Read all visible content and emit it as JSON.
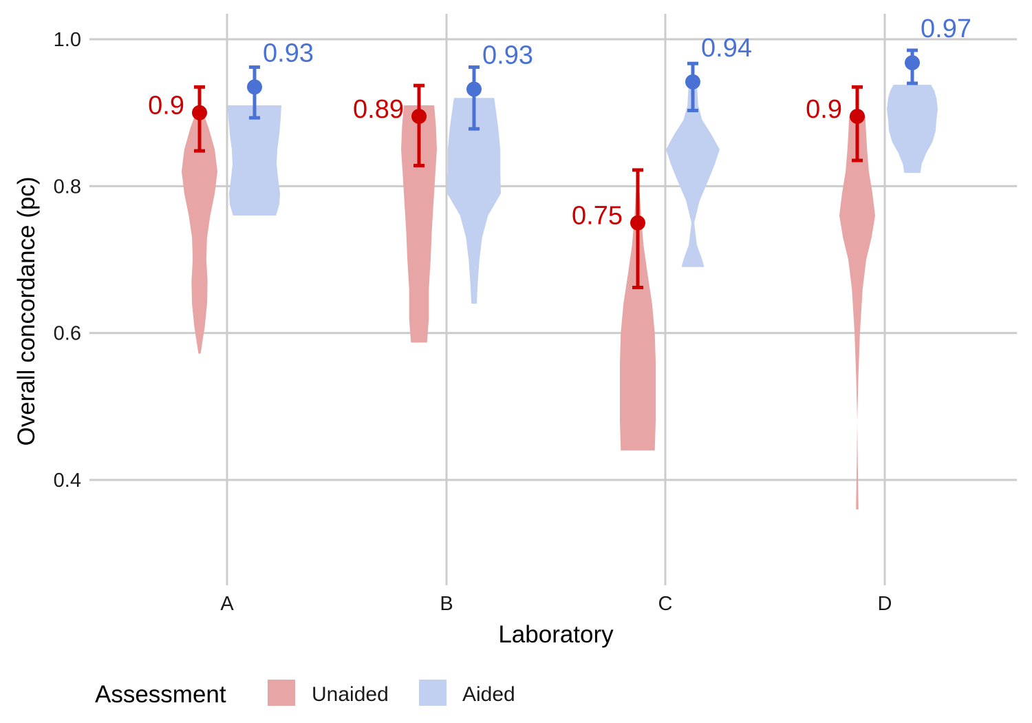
{
  "chart_data": {
    "type": "violin",
    "xlabel": "Laboratory",
    "ylabel": "Overall concordance (pc)",
    "ylim": [
      0.25,
      1.03
    ],
    "yticks": [
      0.4,
      0.6,
      0.8,
      1.0
    ],
    "ytick_labels": [
      "0.4",
      "0.6",
      "0.8",
      "1.0"
    ],
    "categories": [
      "A",
      "B",
      "C",
      "D"
    ],
    "grid": true,
    "legend": {
      "title": "Assessment",
      "position": "bottom-left",
      "entries": [
        "Unaided",
        "Aided"
      ]
    },
    "colors": {
      "Unaided": "#cc0000",
      "Aided": "#4a72d4",
      "Unaided_fill": "#e8a5a5",
      "Aided_fill": "#c1cff0"
    },
    "series": [
      {
        "name": "Unaided",
        "points": [
          {
            "category": "A",
            "mean": 0.9,
            "ci": [
              0.848,
              0.935
            ],
            "label": "0.9",
            "violin": {
              "min": 0.572,
              "max": 0.9,
              "profile": [
                [
                  0.572,
                  0.06
                ],
                [
                  0.61,
                  0.3
                ],
                [
                  0.64,
                  0.42
                ],
                [
                  0.67,
                  0.45
                ],
                [
                  0.7,
                  0.38
                ],
                [
                  0.73,
                  0.42
                ],
                [
                  0.76,
                  0.6
                ],
                [
                  0.79,
                  0.85
                ],
                [
                  0.82,
                  1.0
                ],
                [
                  0.85,
                  0.85
                ],
                [
                  0.88,
                  0.5
                ],
                [
                  0.9,
                  0.2
                ]
              ]
            }
          },
          {
            "category": "B",
            "mean": 0.895,
            "ci": [
              0.828,
              0.937
            ],
            "label": "0.89",
            "violin": {
              "min": 0.587,
              "max": 0.91,
              "profile": [
                [
                  0.587,
                  0.45
                ],
                [
                  0.62,
                  0.55
                ],
                [
                  0.66,
                  0.55
                ],
                [
                  0.7,
                  0.65
                ],
                [
                  0.74,
                  0.72
                ],
                [
                  0.78,
                  0.82
                ],
                [
                  0.82,
                  0.92
                ],
                [
                  0.85,
                  1.0
                ],
                [
                  0.88,
                  0.95
                ],
                [
                  0.91,
                  0.85
                ]
              ]
            }
          },
          {
            "category": "C",
            "mean": 0.75,
            "ci": [
              0.662,
              0.822
            ],
            "label": "0.75",
            "violin": {
              "min": 0.44,
              "max": 0.822,
              "profile": [
                [
                  0.44,
                  0.95
                ],
                [
                  0.48,
                  1.0
                ],
                [
                  0.52,
                  1.0
                ],
                [
                  0.56,
                  1.0
                ],
                [
                  0.6,
                  0.95
                ],
                [
                  0.64,
                  0.8
                ],
                [
                  0.68,
                  0.55
                ],
                [
                  0.72,
                  0.32
                ],
                [
                  0.76,
                  0.18
                ],
                [
                  0.8,
                  0.08
                ],
                [
                  0.822,
                  0.02
                ]
              ]
            }
          },
          {
            "category": "D",
            "mean": 0.895,
            "ci": [
              0.835,
              0.935
            ],
            "label": "0.9",
            "violin": {
              "min": 0.36,
              "max": 0.895,
              "profile": [
                [
                  0.36,
                  0.07
                ],
                [
                  0.42,
                  0.03
                ],
                [
                  0.48,
                  0.0
                ],
                [
                  0.54,
                  0.06
                ],
                [
                  0.6,
                  0.15
                ],
                [
                  0.66,
                  0.3
                ],
                [
                  0.7,
                  0.5
                ],
                [
                  0.73,
                  0.8
                ],
                [
                  0.76,
                  1.0
                ],
                [
                  0.79,
                  0.85
                ],
                [
                  0.82,
                  0.65
                ],
                [
                  0.85,
                  0.55
                ],
                [
                  0.87,
                  0.5
                ],
                [
                  0.895,
                  0.45
                ]
              ]
            }
          }
        ]
      },
      {
        "name": "Aided",
        "points": [
          {
            "category": "A",
            "mean": 0.935,
            "ci": [
              0.893,
              0.962
            ],
            "label": "0.93",
            "violin": {
              "min": 0.76,
              "max": 0.91,
              "profile": [
                [
                  0.76,
                  0.8
                ],
                [
                  0.775,
                  0.92
                ],
                [
                  0.79,
                  0.95
                ],
                [
                  0.81,
                  0.88
                ],
                [
                  0.83,
                  0.82
                ],
                [
                  0.85,
                  0.85
                ],
                [
                  0.87,
                  0.92
                ],
                [
                  0.89,
                  0.97
                ],
                [
                  0.91,
                  1.0
                ]
              ]
            }
          },
          {
            "category": "B",
            "mean": 0.932,
            "ci": [
              0.878,
              0.962
            ],
            "label": "0.93",
            "violin": {
              "min": 0.64,
              "max": 0.92,
              "profile": [
                [
                  0.64,
                  0.1
                ],
                [
                  0.67,
                  0.14
                ],
                [
                  0.7,
                  0.2
                ],
                [
                  0.73,
                  0.3
                ],
                [
                  0.76,
                  0.52
                ],
                [
                  0.79,
                  1.0
                ],
                [
                  0.82,
                  0.98
                ],
                [
                  0.85,
                  0.98
                ],
                [
                  0.88,
                  0.9
                ],
                [
                  0.92,
                  0.75
                ]
              ]
            }
          },
          {
            "category": "C",
            "mean": 0.942,
            "ci": [
              0.903,
              0.967
            ],
            "label": "0.94",
            "violin": {
              "min": 0.69,
              "max": 0.945,
              "profile": [
                [
                  0.69,
                  0.42
                ],
                [
                  0.7,
                  0.35
                ],
                [
                  0.72,
                  0.15
                ],
                [
                  0.75,
                  0.05
                ],
                [
                  0.78,
                  0.25
                ],
                [
                  0.81,
                  0.6
                ],
                [
                  0.83,
                  0.82
                ],
                [
                  0.85,
                  1.0
                ],
                [
                  0.87,
                  0.7
                ],
                [
                  0.89,
                  0.35
                ],
                [
                  0.91,
                  0.2
                ],
                [
                  0.93,
                  0.17
                ],
                [
                  0.945,
                  0.12
                ]
              ]
            }
          },
          {
            "category": "D",
            "mean": 0.968,
            "ci": [
              0.94,
              0.985
            ],
            "label": "0.97",
            "violin": {
              "min": 0.818,
              "max": 0.938,
              "profile": [
                [
                  0.818,
                  0.3
                ],
                [
                  0.83,
                  0.35
                ],
                [
                  0.845,
                  0.52
                ],
                [
                  0.86,
                  0.75
                ],
                [
                  0.875,
                  0.87
                ],
                [
                  0.89,
                  0.9
                ],
                [
                  0.905,
                  0.95
                ],
                [
                  0.92,
                  0.9
                ],
                [
                  0.93,
                  0.82
                ],
                [
                  0.938,
                  0.7
                ]
              ]
            }
          }
        ]
      }
    ]
  }
}
